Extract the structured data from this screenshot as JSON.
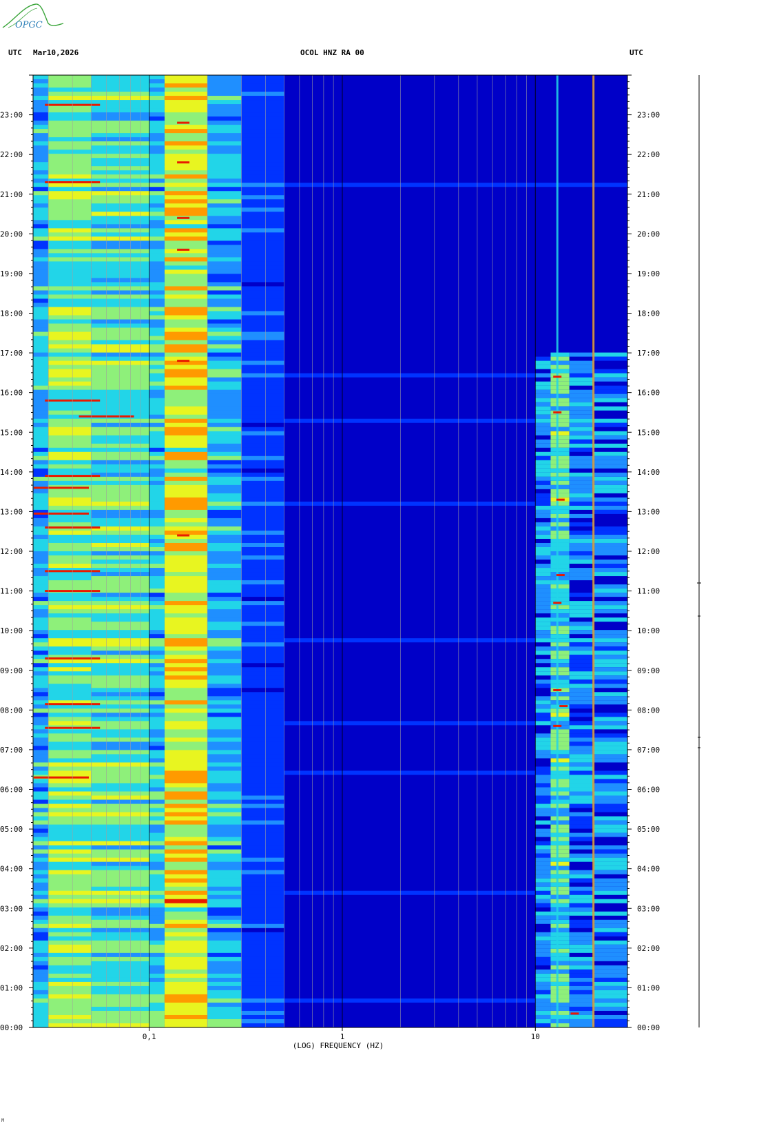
{
  "logo": {
    "text": "OPGC"
  },
  "header": {
    "left_tz": "UTC",
    "date": "Mar10,2026",
    "station": "OCOL HNZ RA 00",
    "right_tz": "UTC"
  },
  "chart_data": {
    "type": "heatmap",
    "title": "OCOL HNZ RA 00",
    "xlabel": "(LOG) FREQUENCY (HZ)",
    "x_scale": "log",
    "xlim": [
      0.025,
      30
    ],
    "x_ticks": [
      {
        "value": 0.1,
        "label": "0,1"
      },
      {
        "value": 1,
        "label": "1"
      },
      {
        "value": 10,
        "label": "10"
      }
    ],
    "y_ticks": [
      "00:00",
      "01:00",
      "02:00",
      "03:00",
      "04:00",
      "05:00",
      "06:00",
      "07:00",
      "08:00",
      "09:00",
      "10:00",
      "11:00",
      "12:00",
      "13:00",
      "14:00",
      "15:00",
      "16:00",
      "17:00",
      "18:00",
      "19:00",
      "20:00",
      "21:00",
      "22:00",
      "23:00"
    ],
    "ylim_hours": [
      0,
      24
    ],
    "colormap": [
      "#0000c8",
      "#0033ff",
      "#1f8fff",
      "#22d5e8",
      "#8ef07a",
      "#e8f520",
      "#ff9a00",
      "#e81a00"
    ],
    "bands_low_freq": [
      {
        "from": 0.025,
        "to": 0.03,
        "level": 0.38
      },
      {
        "from": 0.03,
        "to": 0.05,
        "level": 0.55
      },
      {
        "from": 0.05,
        "to": 0.1,
        "level": 0.5
      },
      {
        "from": 0.1,
        "to": 0.12,
        "level": 0.42
      },
      {
        "from": 0.12,
        "to": 0.2,
        "level": 0.68
      },
      {
        "from": 0.2,
        "to": 0.3,
        "level": 0.38
      },
      {
        "from": 0.3,
        "to": 0.5,
        "level": 0.2
      },
      {
        "from": 0.5,
        "to": 30,
        "level": 0.06
      }
    ],
    "high_freq_activity": {
      "freq_from": 10,
      "freq_to": 30,
      "active_hours": [
        0,
        17
      ],
      "peak_freq": 13
    },
    "persistent_lines_hz": [
      13,
      20
    ],
    "hot_events": [
      {
        "hour": 23.25,
        "freq": 0.04
      },
      {
        "hour": 21.3,
        "freq": 0.04
      },
      {
        "hour": 15.8,
        "freq": 0.04
      },
      {
        "hour": 15.4,
        "freq": 0.06
      },
      {
        "hour": 13.9,
        "freq": 0.04
      },
      {
        "hour": 13.6,
        "freq": 0.035
      },
      {
        "hour": 12.95,
        "freq": 0.035
      },
      {
        "hour": 12.6,
        "freq": 0.04
      },
      {
        "hour": 11.5,
        "freq": 0.04
      },
      {
        "hour": 11.0,
        "freq": 0.04
      },
      {
        "hour": 9.3,
        "freq": 0.04
      },
      {
        "hour": 8.15,
        "freq": 0.04
      },
      {
        "hour": 7.55,
        "freq": 0.04
      },
      {
        "hour": 6.3,
        "freq": 0.035
      },
      {
        "hour": 22.8,
        "freq": 0.15
      },
      {
        "hour": 21.8,
        "freq": 0.15
      },
      {
        "hour": 20.4,
        "freq": 0.15
      },
      {
        "hour": 19.6,
        "freq": 0.15
      },
      {
        "hour": 16.8,
        "freq": 0.15
      },
      {
        "hour": 12.4,
        "freq": 0.15
      },
      {
        "hour": 16.4,
        "freq": 13
      },
      {
        "hour": 15.5,
        "freq": 13
      },
      {
        "hour": 13.3,
        "freq": 13.5
      },
      {
        "hour": 11.4,
        "freq": 13.5
      },
      {
        "hour": 10.7,
        "freq": 13
      },
      {
        "hour": 8.5,
        "freq": 13
      },
      {
        "hour": 8.1,
        "freq": 14
      },
      {
        "hour": 7.6,
        "freq": 13
      },
      {
        "hour": 0.35,
        "freq": 16
      }
    ]
  },
  "footer": {
    "mark": "M"
  }
}
